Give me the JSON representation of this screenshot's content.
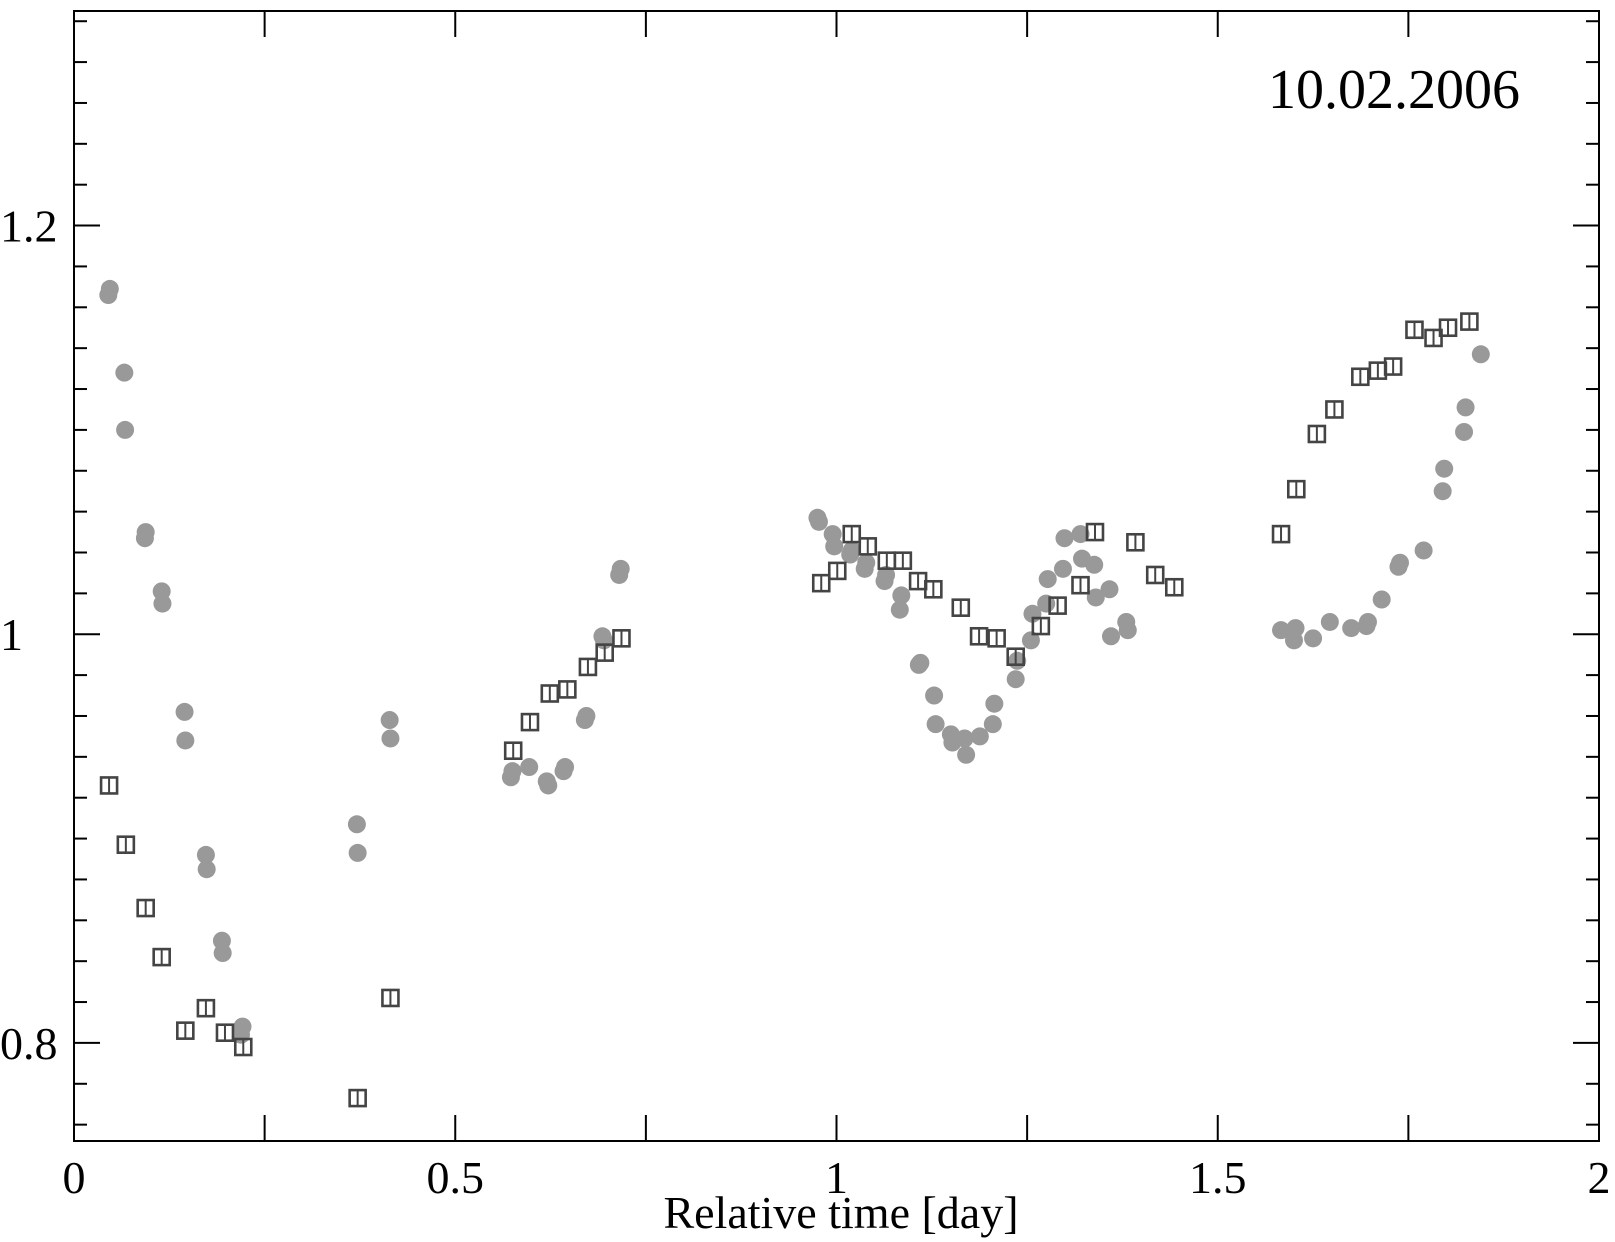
{
  "chart_data": {
    "type": "scatter",
    "title": "",
    "annotation": "10.02.2006",
    "xlabel": "Relative time [day]",
    "ylabel": "",
    "xlim": [
      0,
      2
    ],
    "ylim": [
      0.752,
      1.305
    ],
    "x_ticks": [
      0,
      0.25,
      0.5,
      0.75,
      1,
      1.25,
      1.5,
      1.75,
      2
    ],
    "x_tick_labels": [
      {
        "value": 0,
        "label": "0"
      },
      {
        "value": 0.5,
        "label": "0.5"
      },
      {
        "value": 1,
        "label": "1"
      },
      {
        "value": 1.5,
        "label": "1.5"
      },
      {
        "value": 2,
        "label": "2"
      }
    ],
    "y_ticks": [
      0.8,
      1.0,
      1.2
    ],
    "y_tick_labels": [
      {
        "value": 0.8,
        "label": "0.8"
      },
      {
        "value": 1.0,
        "label": "1"
      },
      {
        "value": 1.2,
        "label": "1.2"
      }
    ],
    "grid": false,
    "colors": {
      "filled_series": "#999999",
      "open_series": "#444444",
      "axes": "#000000"
    },
    "series": [
      {
        "marker": "filled-circle",
        "points": [
          [
            0.045,
            1.166
          ],
          [
            0.047,
            1.169
          ],
          [
            0.066,
            1.128
          ],
          [
            0.067,
            1.1
          ],
          [
            0.093,
            1.047
          ],
          [
            0.094,
            1.05
          ],
          [
            0.115,
            1.021
          ],
          [
            0.116,
            1.015
          ],
          [
            0.145,
            0.962
          ],
          [
            0.146,
            0.948
          ],
          [
            0.173,
            0.892
          ],
          [
            0.174,
            0.885
          ],
          [
            0.194,
            0.85
          ],
          [
            0.195,
            0.844
          ],
          [
            0.219,
            0.804
          ],
          [
            0.221,
            0.808
          ],
          [
            0.371,
            0.907
          ],
          [
            0.372,
            0.893
          ],
          [
            0.414,
            0.958
          ],
          [
            0.415,
            0.949
          ],
          [
            0.573,
            0.93
          ],
          [
            0.575,
            0.933
          ],
          [
            0.597,
            0.935
          ],
          [
            0.62,
            0.928
          ],
          [
            0.622,
            0.926
          ],
          [
            0.642,
            0.933
          ],
          [
            0.644,
            0.935
          ],
          [
            0.67,
            0.958
          ],
          [
            0.672,
            0.96
          ],
          [
            0.693,
            0.999
          ],
          [
            0.695,
            0.997
          ],
          [
            0.715,
            1.029
          ],
          [
            0.717,
            1.032
          ],
          [
            0.975,
            1.057
          ],
          [
            0.977,
            1.055
          ],
          [
            0.995,
            1.049
          ],
          [
            0.997,
            1.043
          ],
          [
            1.018,
            1.039
          ],
          [
            1.02,
            1.041
          ],
          [
            1.037,
            1.032
          ],
          [
            1.039,
            1.035
          ],
          [
            1.063,
            1.026
          ],
          [
            1.065,
            1.029
          ],
          [
            1.083,
            1.012
          ],
          [
            1.085,
            1.019
          ],
          [
            1.108,
            0.985
          ],
          [
            1.11,
            0.986
          ],
          [
            1.128,
            0.97
          ],
          [
            1.13,
            0.956
          ],
          [
            1.15,
            0.951
          ],
          [
            1.152,
            0.947
          ],
          [
            1.168,
            0.949
          ],
          [
            1.17,
            0.941
          ],
          [
            1.188,
            0.95
          ],
          [
            1.205,
            0.956
          ],
          [
            1.207,
            0.966
          ],
          [
            1.235,
            0.978
          ],
          [
            1.237,
            0.987
          ],
          [
            1.255,
            0.997
          ],
          [
            1.257,
            1.01
          ],
          [
            1.275,
            1.015
          ],
          [
            1.277,
            1.027
          ],
          [
            1.297,
            1.032
          ],
          [
            1.299,
            1.047
          ],
          [
            1.32,
            1.049
          ],
          [
            1.322,
            1.037
          ],
          [
            1.338,
            1.034
          ],
          [
            1.34,
            1.018
          ],
          [
            1.358,
            1.022
          ],
          [
            1.36,
            0.999
          ],
          [
            1.38,
            1.006
          ],
          [
            1.382,
            1.002
          ],
          [
            1.583,
            1.002
          ],
          [
            1.6,
            0.997
          ],
          [
            1.602,
            1.003
          ],
          [
            1.625,
            0.998
          ],
          [
            1.647,
            1.006
          ],
          [
            1.675,
            1.003
          ],
          [
            1.695,
            1.004
          ],
          [
            1.697,
            1.006
          ],
          [
            1.715,
            1.017
          ],
          [
            1.737,
            1.033
          ],
          [
            1.739,
            1.035
          ],
          [
            1.77,
            1.041
          ],
          [
            1.795,
            1.07
          ],
          [
            1.797,
            1.081
          ],
          [
            1.823,
            1.099
          ],
          [
            1.825,
            1.111
          ],
          [
            1.845,
            1.137
          ]
        ]
      },
      {
        "marker": "open-square-errorbar",
        "points": [
          [
            0.046,
            0.926
          ],
          [
            0.068,
            0.897
          ],
          [
            0.094,
            0.866
          ],
          [
            0.115,
            0.842
          ],
          [
            0.146,
            0.806
          ],
          [
            0.173,
            0.817
          ],
          [
            0.198,
            0.805
          ],
          [
            0.222,
            0.798
          ],
          [
            0.372,
            0.773
          ],
          [
            0.415,
            0.822
          ],
          [
            0.576,
            0.943
          ],
          [
            0.598,
            0.957
          ],
          [
            0.624,
            0.971
          ],
          [
            0.647,
            0.973
          ],
          [
            0.674,
            0.984
          ],
          [
            0.696,
            0.991
          ],
          [
            0.718,
            0.998
          ],
          [
            0.98,
            1.025
          ],
          [
            1.001,
            1.031
          ],
          [
            1.02,
            1.049
          ],
          [
            1.041,
            1.043
          ],
          [
            1.066,
            1.036
          ],
          [
            1.087,
            1.036
          ],
          [
            1.107,
            1.026
          ],
          [
            1.127,
            1.022
          ],
          [
            1.163,
            1.013
          ],
          [
            1.187,
            0.999
          ],
          [
            1.21,
            0.998
          ],
          [
            1.235,
            0.989
          ],
          [
            1.268,
            1.004
          ],
          [
            1.29,
            1.014
          ],
          [
            1.32,
            1.024
          ],
          [
            1.339,
            1.05
          ],
          [
            1.392,
            1.045
          ],
          [
            1.418,
            1.029
          ],
          [
            1.443,
            1.023
          ],
          [
            1.583,
            1.049
          ],
          [
            1.603,
            1.071
          ],
          [
            1.63,
            1.098
          ],
          [
            1.653,
            1.11
          ],
          [
            1.687,
            1.126
          ],
          [
            1.71,
            1.129
          ],
          [
            1.73,
            1.131
          ],
          [
            1.758,
            1.149
          ],
          [
            1.783,
            1.145
          ],
          [
            1.802,
            1.15
          ],
          [
            1.83,
            1.153
          ]
        ]
      }
    ]
  }
}
